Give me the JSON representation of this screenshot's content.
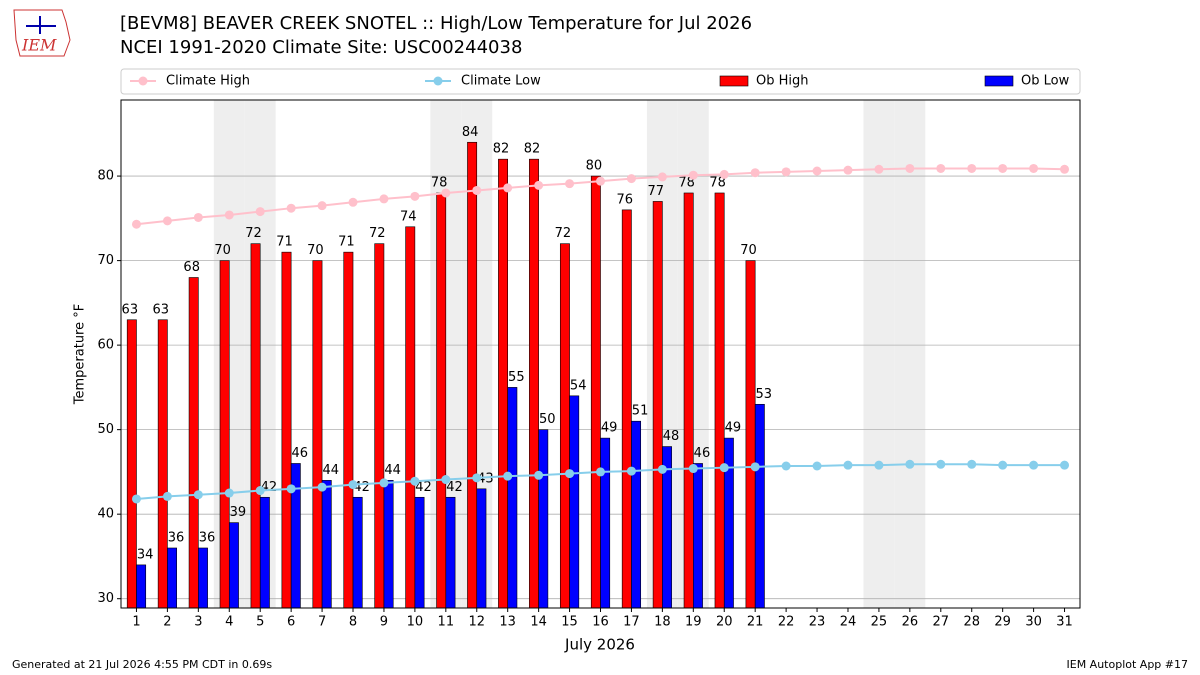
{
  "logo": "IEM",
  "footer": {
    "left": "Generated at 21 Jul 2026 4:55 PM CDT in 0.69s",
    "right": "IEM Autoplot App #17"
  },
  "chart_data": {
    "type": "bar",
    "title": "[BEVM8] BEAVER CREEK SNOTEL :: High/Low Temperature for Jul 2026",
    "subtitle": "NCEI 1991-2020 Climate Site: USC00244038",
    "xlabel": "July 2026",
    "ylabel": "Temperature °F",
    "x": [
      1,
      2,
      3,
      4,
      5,
      6,
      7,
      8,
      9,
      10,
      11,
      12,
      13,
      14,
      15,
      16,
      17,
      18,
      19,
      20,
      21,
      22,
      23,
      24,
      25,
      26,
      27,
      28,
      29,
      30,
      31
    ],
    "xlim": [
      0.5,
      31.5
    ],
    "xticks": [
      1,
      2,
      3,
      4,
      5,
      6,
      7,
      8,
      9,
      10,
      11,
      12,
      13,
      14,
      15,
      16,
      17,
      18,
      19,
      20,
      21,
      22,
      23,
      24,
      25,
      26,
      27,
      28,
      29,
      30,
      31
    ],
    "ylim": [
      28.9,
      89
    ],
    "yticks": [
      30,
      40,
      50,
      60,
      70,
      80
    ],
    "grid": true,
    "weekends": [
      4,
      5,
      11,
      12,
      18,
      19,
      25,
      26
    ],
    "series": [
      {
        "name": "Climate High",
        "kind": "line",
        "color": "#ffc0cb",
        "values": [
          74.3,
          74.7,
          75.1,
          75.4,
          75.8,
          76.2,
          76.5,
          76.9,
          77.3,
          77.6,
          78.0,
          78.3,
          78.6,
          78.9,
          79.1,
          79.4,
          79.7,
          79.9,
          80.1,
          80.2,
          80.4,
          80.5,
          80.6,
          80.7,
          80.8,
          80.9,
          80.9,
          80.9,
          80.9,
          80.9,
          80.8
        ]
      },
      {
        "name": "Climate Low",
        "kind": "line",
        "color": "#87ceeb",
        "values": [
          41.8,
          42.1,
          42.3,
          42.5,
          42.8,
          43.0,
          43.2,
          43.5,
          43.7,
          43.9,
          44.1,
          44.3,
          44.5,
          44.6,
          44.8,
          45.0,
          45.1,
          45.3,
          45.4,
          45.5,
          45.6,
          45.7,
          45.7,
          45.8,
          45.8,
          45.9,
          45.9,
          45.9,
          45.8,
          45.8,
          45.8
        ]
      },
      {
        "name": "Ob High",
        "kind": "bar",
        "color": "#ff0000",
        "values": [
          63,
          63,
          68,
          70,
          72,
          71,
          70,
          71,
          72,
          74,
          78,
          84,
          82,
          82,
          72,
          80,
          76,
          77,
          78,
          78,
          70,
          null,
          null,
          null,
          null,
          null,
          null,
          null,
          null,
          null,
          null
        ]
      },
      {
        "name": "Ob Low",
        "kind": "bar",
        "color": "#0000ff",
        "values": [
          34,
          36,
          36,
          39,
          42,
          46,
          44,
          42,
          44,
          42,
          42,
          43,
          55,
          50,
          54,
          49,
          51,
          48,
          46,
          49,
          53,
          null,
          null,
          null,
          null,
          null,
          null,
          null,
          null,
          null,
          null
        ]
      }
    ]
  }
}
